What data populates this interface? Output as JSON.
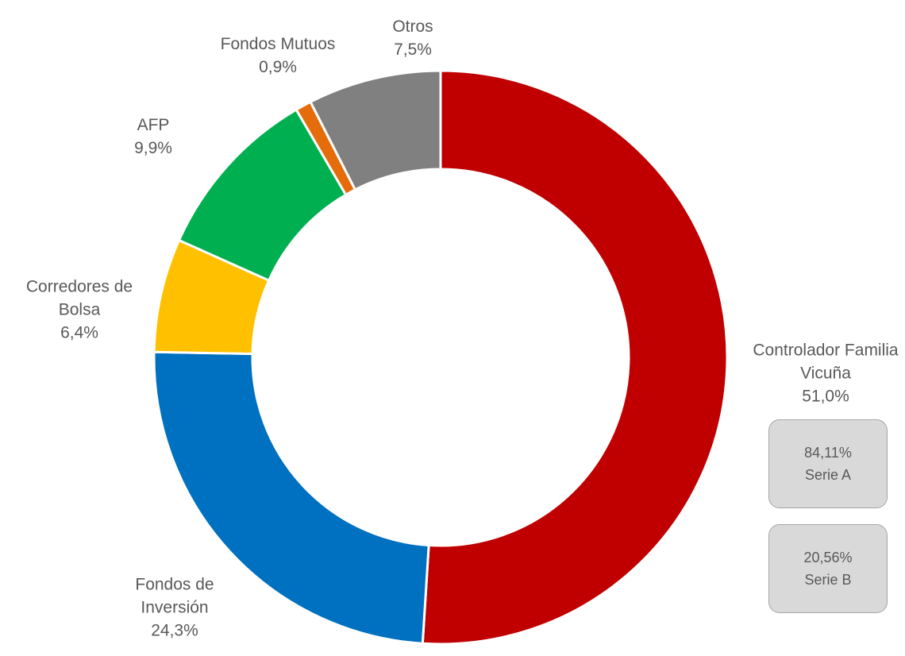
{
  "chart_data": {
    "type": "donut",
    "categories": [
      "Controlador Familia Vicuña",
      "Fondos de Inversión",
      "Corredores de Bolsa",
      "AFP",
      "Fondos Mutuos",
      "Otros"
    ],
    "values": [
      51.0,
      24.3,
      6.4,
      9.9,
      0.9,
      7.5
    ],
    "value_labels": [
      "51,0%",
      "24,3%",
      "6,4%",
      "9,9%",
      "0,9%",
      "7,5%"
    ],
    "colors": [
      "#c00000",
      "#0070c0",
      "#ffc000",
      "#00b050",
      "#e46c0a",
      "#808080"
    ],
    "annotations": [
      {
        "value": "84,11%",
        "label": "Serie A"
      },
      {
        "value": "20,56%",
        "label": "Serie B"
      }
    ]
  }
}
